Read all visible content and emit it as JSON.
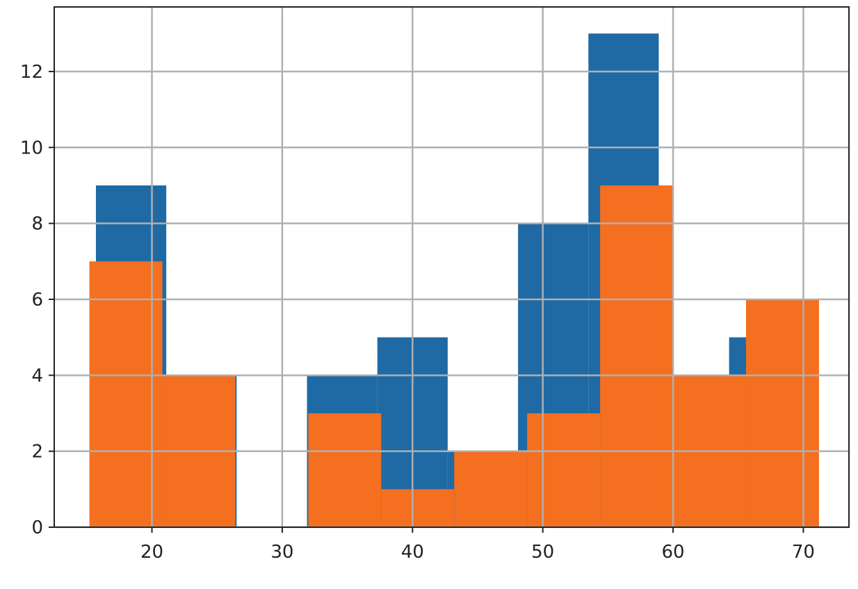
{
  "chart_data": {
    "type": "bar",
    "subtype": "overlaid-histogram",
    "title": "",
    "xlabel": "",
    "ylabel": "",
    "xlim": [
      12.5,
      73.5
    ],
    "ylim": [
      0,
      13.7
    ],
    "xticks": [
      20,
      30,
      40,
      50,
      60,
      70
    ],
    "yticks": [
      0,
      2,
      4,
      6,
      8,
      10,
      12
    ],
    "grid": true,
    "legend": "none",
    "series": [
      {
        "color": "#1f6aa5",
        "bins": [
          {
            "x0": 15.7,
            "x1": 21.1,
            "value": 9
          },
          {
            "x0": 21.1,
            "x2": 26.5,
            "x1": 26.5,
            "value": 4
          },
          {
            "x0": 26.5,
            "x1": 31.9,
            "value": 0
          },
          {
            "x0": 31.9,
            "x1": 37.3,
            "value": 4
          },
          {
            "x0": 37.3,
            "x1": 42.7,
            "value": 5
          },
          {
            "x0": 42.7,
            "x1": 48.1,
            "value": 2
          },
          {
            "x0": 48.1,
            "x1": 53.5,
            "value": 8
          },
          {
            "x0": 53.5,
            "x1": 58.9,
            "value": 13
          },
          {
            "x0": 58.9,
            "x1": 64.3,
            "value": 4
          },
          {
            "x0": 64.3,
            "x1": 69.7,
            "value": 5
          }
        ]
      },
      {
        "color": "#f46f1f",
        "bins": [
          {
            "x0": 15.2,
            "x1": 20.8,
            "value": 7
          },
          {
            "x0": 20.8,
            "x1": 26.4,
            "value": 4
          },
          {
            "x0": 26.4,
            "x1": 32.0,
            "value": 0
          },
          {
            "x0": 32.0,
            "x1": 37.6,
            "value": 3
          },
          {
            "x0": 37.6,
            "x1": 43.2,
            "value": 1
          },
          {
            "x0": 43.2,
            "x1": 48.8,
            "value": 2
          },
          {
            "x0": 48.8,
            "x1": 54.4,
            "value": 3
          },
          {
            "x0": 54.4,
            "x1": 60.0,
            "value": 9
          },
          {
            "x0": 60.0,
            "x1": 65.6,
            "value": 4
          },
          {
            "x0": 65.6,
            "x1": 71.2,
            "value": 6
          }
        ]
      }
    ]
  }
}
